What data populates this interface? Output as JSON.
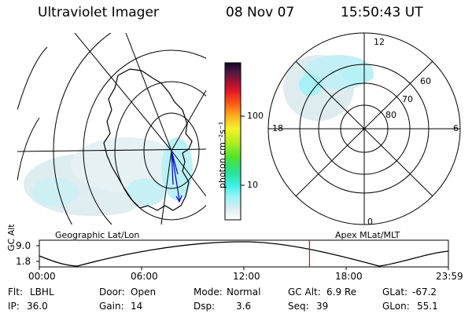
{
  "header": {
    "instrument": "Ultraviolet Imager",
    "date": "08 Nov 07",
    "time": "15:50:43 UT"
  },
  "colorbar": {
    "unit_label": "photon cm⁻²s⁻¹",
    "ticks": [
      "100",
      "10"
    ]
  },
  "left_map": {
    "caption": "Geographic Lat/Lon"
  },
  "right_map": {
    "caption": "Apex MLat/MLT",
    "mlt_labels": {
      "top": "12",
      "bottom": "0",
      "left": "18",
      "right": "6"
    },
    "lat_labels": [
      "60",
      "70",
      "80"
    ]
  },
  "altitude_plot": {
    "ylabel": "GC Alt",
    "yticks": [
      "9.0",
      "1.8"
    ],
    "xticks": [
      "00:00",
      "06:00",
      "12:00",
      "18:00",
      "23:59"
    ],
    "current_time_marker_hours": 15.85
  },
  "info": {
    "flt_label": "Flt:",
    "flt_value": "LBHL",
    "ip_label": "IP:",
    "ip_value": "36.0",
    "door_label": "Door:",
    "door_value": "Open",
    "gain_label": "Gain:",
    "gain_value": "14",
    "mode_label": "Mode:",
    "mode_value": "Normal",
    "dsp_label": "Dsp:",
    "dsp_value": "3.6",
    "gcalt_label": "GC Alt:",
    "gcalt_value": "6.9 Re",
    "seq_label": "Seq:",
    "seq_value": "39",
    "glat_label": "GLat:",
    "glat_value": "-67.2",
    "glon_label": "GLon:",
    "glon_value": "55.1"
  },
  "colors": {
    "accent": "#00e5ff",
    "marker": "#ff0000",
    "vector": "#0000cc"
  }
}
